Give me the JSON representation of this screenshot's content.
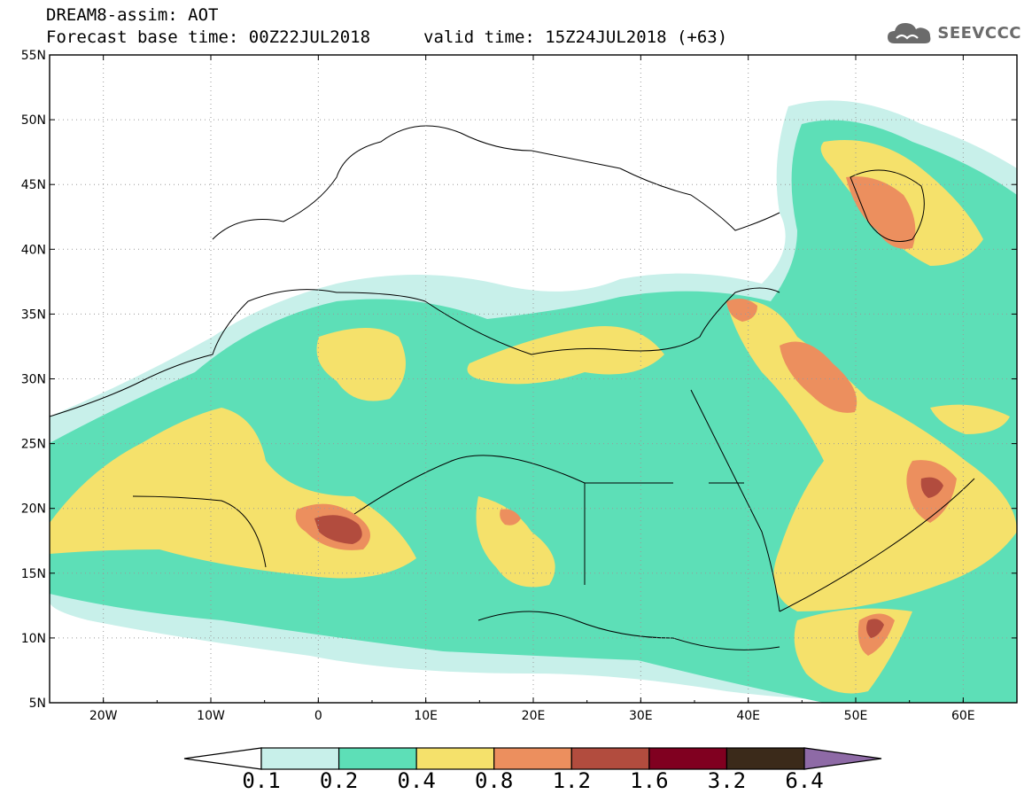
{
  "header": {
    "title": "DREAM8-assim: AOT",
    "base_time": "Forecast base time: 00Z22JUL2018",
    "valid_time": "valid time: 15Z24JUL2018 (+63)"
  },
  "logo": {
    "text": "SEEVCCC",
    "icon": "cloud-icon"
  },
  "map": {
    "lat_labels": [
      "55N",
      "50N",
      "45N",
      "40N",
      "35N",
      "30N",
      "25N",
      "20N",
      "15N",
      "10N",
      "5N"
    ],
    "lon_labels": [
      "20W",
      "10W",
      "0",
      "10E",
      "20E",
      "30E",
      "40E",
      "50E",
      "60E"
    ],
    "gridlines": "dotted",
    "background": "#ffffff"
  },
  "colorbar": {
    "ticks": [
      "0.1",
      "0.2",
      "0.4",
      "0.8",
      "1.2",
      "1.6",
      "3.2",
      "6.4"
    ],
    "colors": [
      "#c8f0ea",
      "#5ddfb7",
      "#f5e16b",
      "#ec8f5e",
      "#b24c3e",
      "#800020",
      "#3b2a1a"
    ],
    "under_color": "#ffffff",
    "over_color": "#8e6aa6"
  }
}
